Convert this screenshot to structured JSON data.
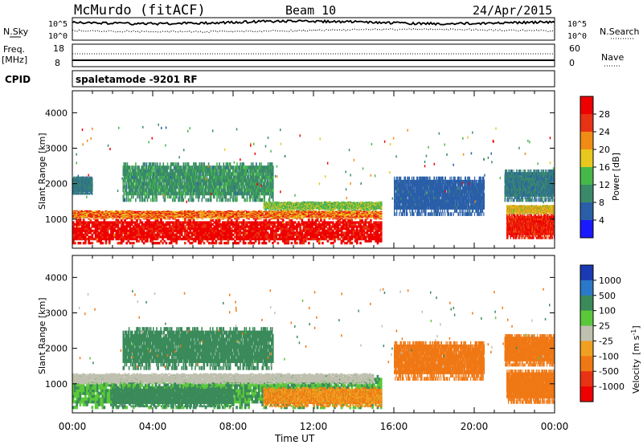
{
  "header": {
    "station": "McMurdo (fitACF)",
    "beam": "Beam 10",
    "date": "24/Apr/2015"
  },
  "noise_panel": {
    "left_label": "N.Sky",
    "right_label": "N.Search",
    "left_ticks": [
      "10^5",
      "10^0"
    ],
    "right_ticks": [
      "10^5",
      "10^0"
    ]
  },
  "freq_panel": {
    "left_label_1": "Freq.",
    "left_label_2": "[MHz]",
    "right_label": "Nave",
    "left_ticks": [
      "18",
      "8"
    ],
    "right_ticks": [
      "60",
      "0"
    ]
  },
  "cpid": {
    "label": "CPID",
    "mode": "spaletamode -9201 RF"
  },
  "chart_data": [
    {
      "type": "heatmap",
      "name": "power",
      "ylabel": "Slant Range [km]",
      "xlabel": "Time UT",
      "x_ticks": [
        "00:00",
        "04:00",
        "08:00",
        "12:00",
        "16:00",
        "20:00",
        "00:00"
      ],
      "x_range_hours": [
        0,
        24
      ],
      "y_ticks": [
        1000,
        2000,
        3000,
        4000
      ],
      "ylim": [
        180,
        4620
      ],
      "colorbar": {
        "label": "Power [dB]",
        "ticks": [
          "4",
          "8",
          "12",
          "16",
          "20",
          "24",
          "28"
        ],
        "range": [
          0,
          30
        ],
        "colors": [
          "#1a1aff",
          "#2a5fa8",
          "#3a8a6a",
          "#46b84a",
          "#e8c81e",
          "#f08c14",
          "#e83214",
          "#ee0000"
        ]
      },
      "regions": [
        {
          "t0": 0.0,
          "t1": 15.4,
          "r0": 300,
          "r1": 1000,
          "value": 30
        },
        {
          "t0": 0.0,
          "t1": 15.4,
          "r0": 1000,
          "r1": 1250,
          "value": 22
        },
        {
          "t0": 9.5,
          "t1": 15.4,
          "r0": 1250,
          "r1": 1500,
          "value": 14
        },
        {
          "t0": 0.0,
          "t1": 1.0,
          "r0": 1700,
          "r1": 2200,
          "value": 8
        },
        {
          "t0": 2.5,
          "t1": 10.0,
          "r0": 1500,
          "r1": 2600,
          "value": 10
        },
        {
          "t0": 16.0,
          "t1": 20.5,
          "r0": 1100,
          "r1": 2200,
          "value": 6
        },
        {
          "t0": 21.6,
          "t1": 24.0,
          "r0": 450,
          "r1": 1150,
          "value": 28
        },
        {
          "t0": 21.6,
          "t1": 24.0,
          "r0": 1150,
          "r1": 1400,
          "value": 18
        },
        {
          "t0": 21.5,
          "t1": 24.0,
          "r0": 1500,
          "r1": 2400,
          "value": 8
        }
      ]
    },
    {
      "type": "heatmap",
      "name": "velocity",
      "ylabel": "Slant Range [km]",
      "xlabel": "Time UT",
      "x_ticks": [
        "00:00",
        "04:00",
        "08:00",
        "12:00",
        "16:00",
        "20:00",
        "00:00"
      ],
      "x_range_hours": [
        0,
        24
      ],
      "y_ticks": [
        1000,
        2000,
        3000,
        4000
      ],
      "ylim": [
        180,
        4620
      ],
      "colorbar": {
        "label_1": "Velocity",
        "label_2": "[m s",
        "label_3": "-1",
        "label_4": "]",
        "ticks": [
          "1000",
          "500",
          "100",
          "25",
          "-25",
          "-100",
          "-500",
          "-1000"
        ],
        "colors": [
          "#1a3ab4",
          "#2a78c8",
          "#3a8a5a",
          "#5ac83a",
          "#c0c0b0",
          "#f0a020",
          "#f07814",
          "#e83214",
          "#ee0000"
        ]
      },
      "regions": [
        {
          "t0": 0.0,
          "t1": 15.4,
          "r0": 300,
          "r1": 1250,
          "value": 100
        },
        {
          "t0": 2.0,
          "t1": 8.0,
          "r0": 350,
          "r1": 900,
          "value": 400
        },
        {
          "t0": 9.5,
          "t1": 15.4,
          "r0": 350,
          "r1": 900,
          "value": -100
        },
        {
          "t0": 0.0,
          "t1": 15.0,
          "r0": 1000,
          "r1": 1300,
          "value": 0
        },
        {
          "t0": 2.5,
          "t1": 10.0,
          "r0": 1400,
          "r1": 2600,
          "value": 150
        },
        {
          "t0": 16.0,
          "t1": 20.5,
          "r0": 1100,
          "r1": 2200,
          "value": -150
        },
        {
          "t0": 21.6,
          "t1": 24.0,
          "r0": 450,
          "r1": 1400,
          "value": -150
        },
        {
          "t0": 21.5,
          "t1": 24.0,
          "r0": 1500,
          "r1": 2400,
          "value": -200
        }
      ]
    }
  ]
}
